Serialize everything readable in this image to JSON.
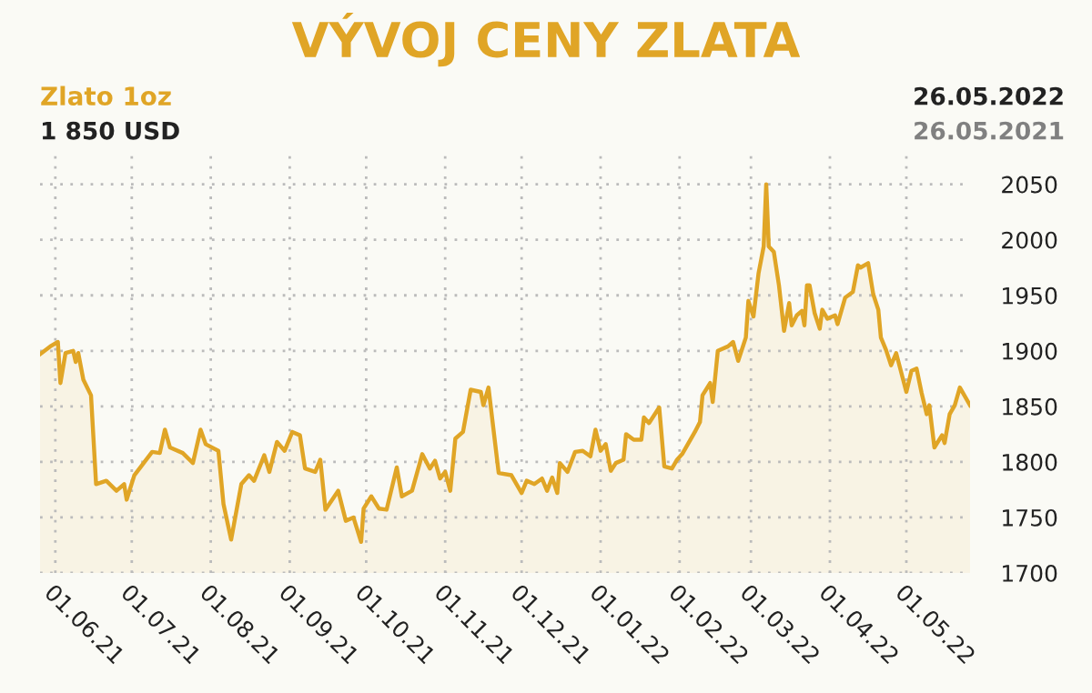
{
  "chart_data": {
    "type": "area",
    "title": "VÝVOJ CENY ZLATA",
    "annotations": [
      "1 850 USD",
      "26.05.2022",
      "26.05.2021"
    ],
    "x": [
      "2021-05-26",
      "2021-05-30",
      "2021-06-02",
      "2021-06-03",
      "2021-06-05",
      "2021-06-08",
      "2021-06-09",
      "2021-06-10",
      "2021-06-12",
      "2021-06-15",
      "2021-06-17",
      "2021-06-21",
      "2021-06-25",
      "2021-06-28",
      "2021-06-29",
      "2021-07-02",
      "2021-07-05",
      "2021-07-09",
      "2021-07-12",
      "2021-07-14",
      "2021-07-16",
      "2021-07-21",
      "2021-07-25",
      "2021-07-28",
      "2021-07-30",
      "2021-08-04",
      "2021-08-06",
      "2021-08-09",
      "2021-08-13",
      "2021-08-16",
      "2021-08-18",
      "2021-08-22",
      "2021-08-24",
      "2021-08-27",
      "2021-08-30",
      "2021-09-02",
      "2021-09-05",
      "2021-09-07",
      "2021-09-11",
      "2021-09-13",
      "2021-09-15",
      "2021-09-20",
      "2021-09-23",
      "2021-09-26",
      "2021-09-29",
      "2021-09-30",
      "2021-10-03",
      "2021-10-06",
      "2021-10-09",
      "2021-10-13",
      "2021-10-15",
      "2021-10-19",
      "2021-10-23",
      "2021-10-26",
      "2021-10-28",
      "2021-10-30",
      "2021-11-01",
      "2021-11-03",
      "2021-11-05",
      "2021-11-08",
      "2021-11-11",
      "2021-11-15",
      "2021-11-16",
      "2021-11-18",
      "2021-11-22",
      "2021-11-27",
      "2021-12-01",
      "2021-12-03",
      "2021-12-06",
      "2021-12-09",
      "2021-12-11",
      "2021-12-13",
      "2021-12-15",
      "2021-12-16",
      "2021-12-19",
      "2021-12-22",
      "2021-12-25",
      "2021-12-28",
      "2021-12-30",
      "2022-01-01",
      "2022-01-03",
      "2022-01-05",
      "2022-01-07",
      "2022-01-10",
      "2022-01-11",
      "2022-01-14",
      "2022-01-17",
      "2022-01-18",
      "2022-01-20",
      "2022-01-24",
      "2022-01-26",
      "2022-01-29",
      "2022-01-31",
      "2022-02-02",
      "2022-02-07",
      "2022-02-09",
      "2022-02-10",
      "2022-02-13",
      "2022-02-14",
      "2022-02-16",
      "2022-02-20",
      "2022-02-22",
      "2022-02-24",
      "2022-02-27",
      "2022-02-28",
      "2022-03-02",
      "2022-03-04",
      "2022-03-06",
      "2022-03-07",
      "2022-03-08",
      "2022-03-10",
      "2022-03-12",
      "2022-03-14",
      "2022-03-16",
      "2022-03-17",
      "2022-03-19",
      "2022-03-21",
      "2022-03-22",
      "2022-03-23",
      "2022-03-24",
      "2022-03-26",
      "2022-03-28",
      "2022-03-29",
      "2022-03-31",
      "2022-04-03",
      "2022-04-04",
      "2022-04-07",
      "2022-04-10",
      "2022-04-12",
      "2022-04-13",
      "2022-04-16",
      "2022-04-18",
      "2022-04-20",
      "2022-04-21",
      "2022-04-23",
      "2022-04-25",
      "2022-04-27",
      "2022-05-01",
      "2022-05-03",
      "2022-05-05",
      "2022-05-07",
      "2022-05-09",
      "2022-05-10",
      "2022-05-12",
      "2022-05-15",
      "2022-05-16",
      "2022-05-18",
      "2022-05-20",
      "2022-05-22",
      "2022-05-26"
    ],
    "series": [
      {
        "name": "Zlato 1oz",
        "color": "#e0a526",
        "values": [
          1897,
          1904,
          1908,
          1871,
          1898,
          1900,
          1890,
          1898,
          1874,
          1860,
          1780,
          1783,
          1774,
          1780,
          1766,
          1788,
          1797,
          1809,
          1808,
          1829,
          1813,
          1808,
          1799,
          1829,
          1816,
          1810,
          1762,
          1730,
          1780,
          1788,
          1783,
          1806,
          1791,
          1818,
          1810,
          1827,
          1824,
          1794,
          1791,
          1802,
          1757,
          1774,
          1747,
          1750,
          1728,
          1758,
          1769,
          1758,
          1757,
          1795,
          1769,
          1774,
          1807,
          1794,
          1801,
          1785,
          1791,
          1774,
          1821,
          1827,
          1865,
          1863,
          1851,
          1867,
          1790,
          1788,
          1772,
          1783,
          1780,
          1785,
          1774,
          1786,
          1772,
          1799,
          1791,
          1809,
          1810,
          1805,
          1829,
          1810,
          1816,
          1792,
          1799,
          1802,
          1825,
          1820,
          1820,
          1840,
          1835,
          1849,
          1796,
          1794,
          1802,
          1807,
          1827,
          1836,
          1860,
          1871,
          1854,
          1900,
          1904,
          1908,
          1891,
          1912,
          1945,
          1931,
          1970,
          1994,
          2050,
          1994,
          1989,
          1959,
          1918,
          1943,
          1923,
          1932,
          1936,
          1923,
          1959,
          1959,
          1934,
          1920,
          1937,
          1929,
          1932,
          1924,
          1948,
          1953,
          1977,
          1975,
          1979,
          1951,
          1937,
          1912,
          1901,
          1887,
          1898,
          1863,
          1882,
          1884,
          1862,
          1843,
          1851,
          1813,
          1824,
          1817,
          1843,
          1851,
          1867,
          1851
        ]
      }
    ],
    "xlim": [
      "2021-05-26",
      "2022-05-26"
    ],
    "xticks": [
      {
        "value": "2021-06-01",
        "label": "01.06.21"
      },
      {
        "value": "2021-07-01",
        "label": "01.07.21"
      },
      {
        "value": "2021-08-01",
        "label": "01.08.21"
      },
      {
        "value": "2021-09-01",
        "label": "01.09.21"
      },
      {
        "value": "2021-10-01",
        "label": "01.10.21"
      },
      {
        "value": "2021-11-01",
        "label": "01.11.21"
      },
      {
        "value": "2021-12-01",
        "label": "01.12.21"
      },
      {
        "value": "2022-01-01",
        "label": "01.01.22"
      },
      {
        "value": "2022-02-01",
        "label": "01.02.22"
      },
      {
        "value": "2022-03-01",
        "label": "01.03.22"
      },
      {
        "value": "2022-04-01",
        "label": "01.04.22"
      },
      {
        "value": "2022-05-01",
        "label": "01.05.22"
      }
    ],
    "ylim": [
      1700,
      2080
    ],
    "yticks": [
      1700,
      1750,
      1800,
      1850,
      1900,
      1950,
      2000,
      2050
    ],
    "grid": true,
    "legend": false,
    "line_style": "solid",
    "marker": "none"
  }
}
